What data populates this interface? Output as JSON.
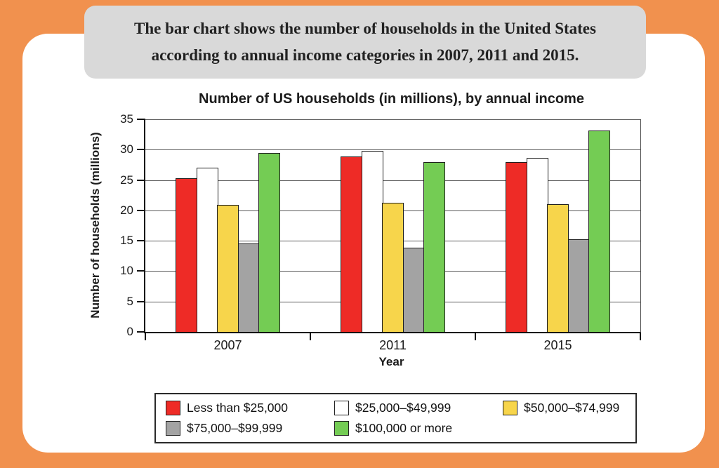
{
  "caption": {
    "line1": "The bar chart shows the number of households in the United States",
    "line2": "according to annual income categories in 2007, 2011 and 2015."
  },
  "colors": {
    "background_orange": "#f1914e",
    "caption_box_gray": "#d9d9d9",
    "bar_red": "#ee2b26",
    "bar_white": "#ffffff",
    "bar_yellow": "#f7d54b",
    "bar_gray": "#a3a3a3",
    "bar_green": "#74cc54"
  },
  "chart_data": {
    "type": "bar",
    "title": "Number of US households (in millions), by annual income",
    "xlabel": "Year",
    "ylabel": "Number of households (millions)",
    "ylim": [
      0,
      35
    ],
    "ytick_step": 5,
    "grid": true,
    "legend_position": "bottom",
    "categories": [
      "2007",
      "2011",
      "2015"
    ],
    "series": [
      {
        "name": "Less than $25,000",
        "color": "#ee2b26",
        "values": [
          25.3,
          28.9,
          27.9
        ]
      },
      {
        "name": "$25,000–$49,999",
        "color": "#ffffff",
        "values": [
          27.0,
          29.8,
          28.6
        ]
      },
      {
        "name": "$50,000–$74,999",
        "color": "#f7d54b",
        "values": [
          20.9,
          21.2,
          21.0
        ]
      },
      {
        "name": "$75,000–$99,999",
        "color": "#a3a3a3",
        "values": [
          14.5,
          13.9,
          15.2
        ]
      },
      {
        "name": "$100,000 or more",
        "color": "#74cc54",
        "values": [
          29.4,
          27.9,
          33.2
        ]
      }
    ]
  }
}
